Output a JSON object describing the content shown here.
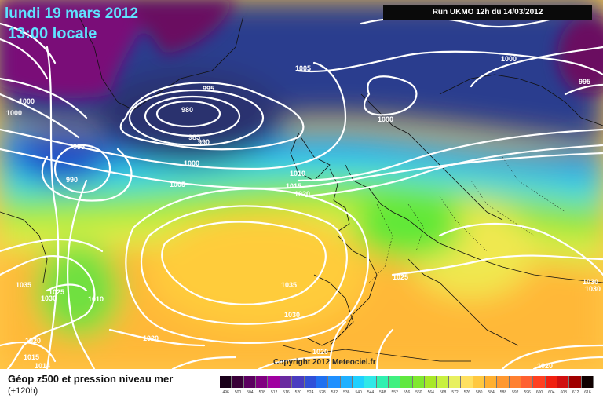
{
  "header": {
    "date": "lundi 19 mars 2012",
    "time": "13:00 locale",
    "run": "Run UKMO 12h du 14/03/2012"
  },
  "footer": {
    "title": "Géop z500 et pression niveau mer",
    "lead": "(+120h)",
    "copyright": "Copyright 2012 Meteociel.fr"
  },
  "legend": {
    "values": [
      "496",
      "500",
      "504",
      "508",
      "512",
      "516",
      "520",
      "524",
      "528",
      "532",
      "536",
      "540",
      "544",
      "548",
      "552",
      "556",
      "560",
      "564",
      "568",
      "572",
      "576",
      "580",
      "584",
      "588",
      "592",
      "596",
      "600",
      "604",
      "608",
      "612",
      "616"
    ],
    "colors": [
      "#1a001a",
      "#3a0038",
      "#5c0060",
      "#800080",
      "#a000a0",
      "#6a2aa0",
      "#4a3cc0",
      "#3050d8",
      "#2070f0",
      "#2090ff",
      "#20b0ff",
      "#20d0ff",
      "#30e8e8",
      "#30f0b0",
      "#40f080",
      "#60e840",
      "#80e830",
      "#a8e828",
      "#c8f040",
      "#e8f060",
      "#ffe060",
      "#ffc840",
      "#ffb030",
      "#ff9830",
      "#ff8030",
      "#ff6030",
      "#ff4020",
      "#f02010",
      "#d01010",
      "#a00000",
      "#100000"
    ]
  },
  "pressure_labels": [
    "1000",
    "1000",
    "1005",
    "995",
    "980",
    "985",
    "990",
    "995",
    "990",
    "1000",
    "1000",
    "1005",
    "1010",
    "1015",
    "1020",
    "1000",
    "995",
    "1035",
    "1030",
    "1025",
    "1010",
    "1035",
    "1030",
    "1020",
    "1020",
    "1015",
    "1014",
    "1025",
    "1030",
    "1030",
    "1020",
    "1020"
  ]
}
